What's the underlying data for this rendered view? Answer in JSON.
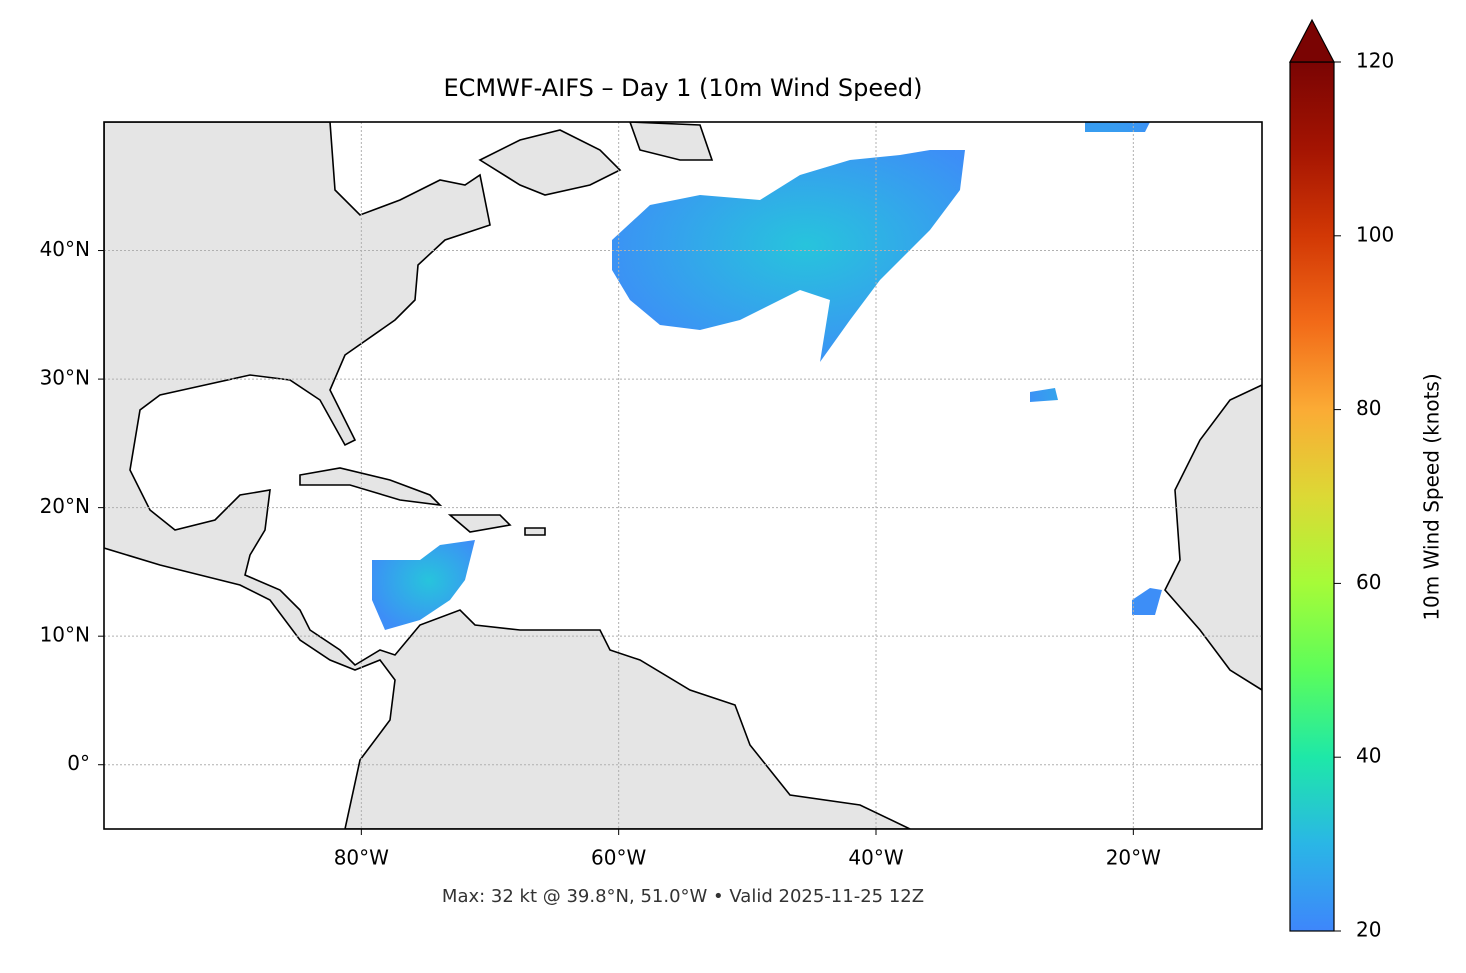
{
  "chart_data": {
    "type": "map",
    "title": "ECMWF-AIFS – Day 1 (10m Wind Speed)",
    "caption": "Max: 32 kt @ 39.8°N, 51.0°W • Valid 2025-11-25 12Z",
    "xlim": [
      -100,
      -10
    ],
    "ylim": [
      -5,
      50
    ],
    "xticks": [
      {
        "value": -80,
        "label": "80°W"
      },
      {
        "value": -60,
        "label": "60°W"
      },
      {
        "value": -40,
        "label": "40°W"
      },
      {
        "value": -20,
        "label": "20°W"
      }
    ],
    "yticks": [
      {
        "value": 0,
        "label": "0°"
      },
      {
        "value": 10,
        "label": "10°N"
      },
      {
        "value": 20,
        "label": "20°N"
      },
      {
        "value": 30,
        "label": "30°N"
      },
      {
        "value": 40,
        "label": "40°N"
      }
    ],
    "grid": true,
    "colorbar": {
      "label": "10m Wind Speed (knots)",
      "lim": [
        20,
        120
      ],
      "ticks": [
        20,
        40,
        60,
        80,
        100,
        120
      ],
      "extend": "max"
    }
  }
}
